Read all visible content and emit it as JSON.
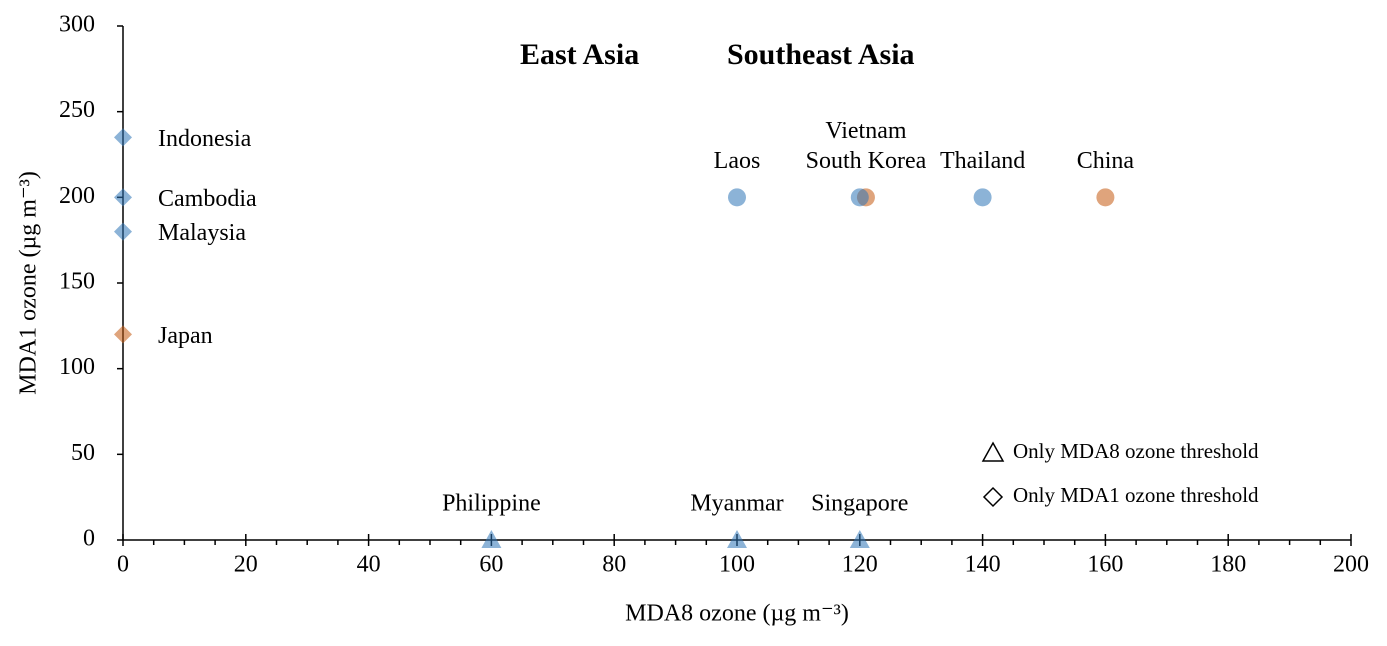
{
  "chart_data": {
    "type": "scatter",
    "x_label": "MDA8 ozone (µg m⁻³)",
    "y_label": "MDA1 ozone (µg m⁻³)",
    "xlim": [
      0,
      200
    ],
    "xticks": [
      0,
      20,
      40,
      60,
      80,
      100,
      120,
      140,
      160,
      180,
      200
    ],
    "ylim": [
      0,
      300
    ],
    "yticks": [
      0,
      50,
      100,
      150,
      200,
      250,
      300
    ],
    "series": [
      {
        "name": "East Asia",
        "color": "#c55a11",
        "labels": [
          "Japan",
          "South Korea",
          "China"
        ],
        "x": [
          0,
          121,
          160
        ],
        "values": [
          120,
          200,
          200
        ],
        "markers": [
          "diamond",
          "circle",
          "circle"
        ]
      },
      {
        "name": "Southeast Asia",
        "color": "#2e75b6",
        "labels": [
          "Indonesia",
          "Cambodia",
          "Malaysia",
          "Laos",
          "Vietnam",
          "Thailand",
          "Philippine",
          "Myanmar",
          "Singapore"
        ],
        "x": [
          0,
          0,
          0,
          100,
          120,
          140,
          60,
          100,
          120
        ],
        "values": [
          235,
          200,
          180,
          200,
          200,
          200,
          0,
          0,
          0
        ],
        "markers": [
          "diamond",
          "diamond",
          "diamond",
          "circle",
          "circle",
          "circle",
          "triangle",
          "triangle",
          "triangle"
        ]
      }
    ],
    "marker_legend": [
      {
        "marker": "triangle",
        "label": "Only MDA8 ozone threshold"
      },
      {
        "marker": "diamond",
        "label": "Only MDA1 ozone threshold"
      }
    ]
  }
}
